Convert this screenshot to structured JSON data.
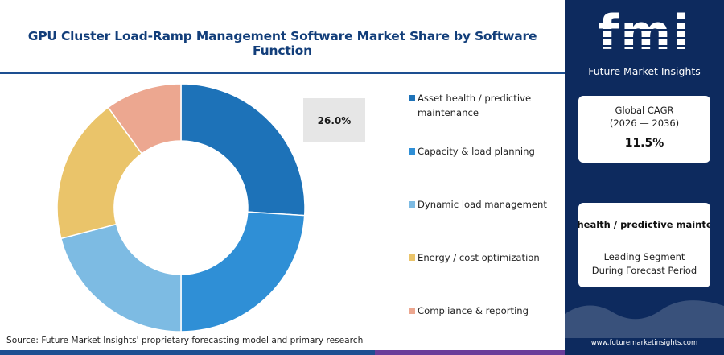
{
  "header": {
    "title": "GPU Cluster Load-Ramp Management Software Market Share by Software Function"
  },
  "chart_data": {
    "type": "pie",
    "variant": "donut",
    "categories": [
      "Asset health / predictive maintenance",
      "Capacity & load planning",
      "Dynamic load management",
      "Energy / cost optimization",
      "Compliance & reporting"
    ],
    "values": [
      26.0,
      24.0,
      21.0,
      19.0,
      10.0
    ],
    "colors": [
      "#1d72b8",
      "#2f8fd6",
      "#7dbbe3",
      "#eac46a",
      "#eca790"
    ],
    "callout_label": "26.0%",
    "legend_position": "right"
  },
  "footer": {
    "source": "Source: Future Market Insights' proprietary forecasting model and primary research",
    "bar_colors": [
      "#1d4f91",
      "#e0703a",
      "#6a3d9a"
    ]
  },
  "sidebar": {
    "logo_text": "fmi",
    "brand_name": "Future Market Insights",
    "cagr_label_line1": "Global CAGR",
    "cagr_label_line2": "(2026 — 2036)",
    "cagr_value": "11.5%",
    "segment_name": "Asset health / predictive maintenance",
    "segment_caption_line1": "Leading Segment",
    "segment_caption_line2": "During Forecast Period",
    "website": "www.futuremarketinsights.com",
    "background_color": "#0d2a5e"
  }
}
